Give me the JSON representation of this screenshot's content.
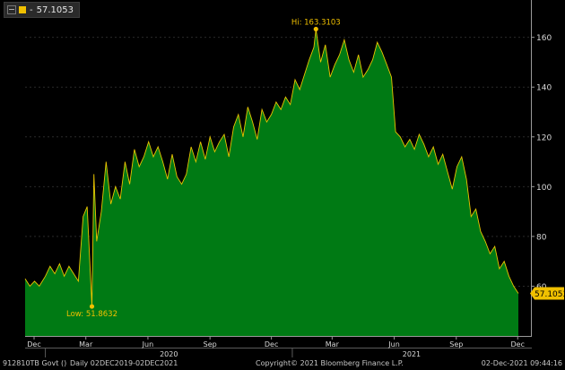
{
  "legend": {
    "marker_color": "#f0c000",
    "dash": "-",
    "value": "57.1053"
  },
  "footer": {
    "security": "912810TB Govt ()",
    "period": "Daily 02DEC2019-02DEC2021",
    "copyright": "Copyright© 2021 Bloomberg Finance L.P.",
    "timestamp": "02-Dec-2021 09:44:16"
  },
  "chart_data": {
    "type": "area",
    "title": "",
    "xlabel": "",
    "ylabel": "",
    "x_range": [
      "2019-12-02",
      "2021-12-02"
    ],
    "ylim": [
      40,
      175
    ],
    "y_ticks": [
      60,
      80,
      100,
      120,
      140,
      160
    ],
    "x_month_ticks": [
      "Dec",
      "Mar",
      "Jun",
      "Sep",
      "Dec",
      "Mar",
      "Jun",
      "Sep",
      "Dec"
    ],
    "x_year_labels": [
      "2020",
      "2021"
    ],
    "fill_color": "#007a14",
    "line_color": "#e8c400",
    "last_value": "57.1053",
    "annotations": [
      {
        "label": "Hi: 163.3103",
        "x": "2021-02-05",
        "y": 163.3103
      },
      {
        "label": "Low: 51.8632",
        "x": "2020-03-10",
        "y": 51.8632
      }
    ],
    "series": [
      {
        "points": [
          [
            "2019-12-02",
            63
          ],
          [
            "2019-12-09",
            60
          ],
          [
            "2019-12-16",
            62
          ],
          [
            "2019-12-23",
            60
          ],
          [
            "2020-01-01",
            64
          ],
          [
            "2020-01-08",
            68
          ],
          [
            "2020-01-15",
            65
          ],
          [
            "2020-01-22",
            69
          ],
          [
            "2020-01-29",
            64
          ],
          [
            "2020-02-05",
            68
          ],
          [
            "2020-02-12",
            65
          ],
          [
            "2020-02-19",
            62
          ],
          [
            "2020-02-26",
            88
          ],
          [
            "2020-03-03",
            92
          ],
          [
            "2020-03-10",
            51.8632
          ],
          [
            "2020-03-13",
            105
          ],
          [
            "2020-03-17",
            78
          ],
          [
            "2020-03-24",
            90
          ],
          [
            "2020-03-31",
            110
          ],
          [
            "2020-04-07",
            93
          ],
          [
            "2020-04-14",
            100
          ],
          [
            "2020-04-21",
            95
          ],
          [
            "2020-04-28",
            110
          ],
          [
            "2020-05-05",
            101
          ],
          [
            "2020-05-12",
            115
          ],
          [
            "2020-05-19",
            108
          ],
          [
            "2020-05-26",
            112
          ],
          [
            "2020-06-02",
            118
          ],
          [
            "2020-06-09",
            112
          ],
          [
            "2020-06-16",
            116
          ],
          [
            "2020-06-23",
            110
          ],
          [
            "2020-06-30",
            103
          ],
          [
            "2020-07-07",
            113
          ],
          [
            "2020-07-14",
            104
          ],
          [
            "2020-07-21",
            101
          ],
          [
            "2020-07-28",
            105
          ],
          [
            "2020-08-04",
            116
          ],
          [
            "2020-08-11",
            110
          ],
          [
            "2020-08-18",
            118
          ],
          [
            "2020-08-25",
            111
          ],
          [
            "2020-09-01",
            120
          ],
          [
            "2020-09-08",
            114
          ],
          [
            "2020-09-15",
            118
          ],
          [
            "2020-09-22",
            121
          ],
          [
            "2020-09-29",
            112
          ],
          [
            "2020-10-06",
            124
          ],
          [
            "2020-10-13",
            129
          ],
          [
            "2020-10-20",
            120
          ],
          [
            "2020-10-27",
            132
          ],
          [
            "2020-11-03",
            126
          ],
          [
            "2020-11-10",
            119
          ],
          [
            "2020-11-17",
            131
          ],
          [
            "2020-11-24",
            126
          ],
          [
            "2020-12-01",
            129
          ],
          [
            "2020-12-08",
            134
          ],
          [
            "2020-12-15",
            131
          ],
          [
            "2020-12-22",
            136
          ],
          [
            "2020-12-29",
            133
          ],
          [
            "2021-01-05",
            143
          ],
          [
            "2021-01-12",
            139
          ],
          [
            "2021-01-19",
            145
          ],
          [
            "2021-01-26",
            151
          ],
          [
            "2021-02-02",
            156
          ],
          [
            "2021-02-05",
            163.3103
          ],
          [
            "2021-02-12",
            150
          ],
          [
            "2021-02-19",
            157
          ],
          [
            "2021-02-26",
            144
          ],
          [
            "2021-03-05",
            149
          ],
          [
            "2021-03-12",
            153
          ],
          [
            "2021-03-19",
            159
          ],
          [
            "2021-03-26",
            151
          ],
          [
            "2021-04-02",
            146
          ],
          [
            "2021-04-09",
            153
          ],
          [
            "2021-04-16",
            144
          ],
          [
            "2021-04-23",
            147
          ],
          [
            "2021-04-30",
            151
          ],
          [
            "2021-05-07",
            158
          ],
          [
            "2021-05-14",
            154
          ],
          [
            "2021-05-21",
            149
          ],
          [
            "2021-05-28",
            144
          ],
          [
            "2021-06-03",
            122
          ],
          [
            "2021-06-10",
            120
          ],
          [
            "2021-06-17",
            116
          ],
          [
            "2021-06-24",
            119
          ],
          [
            "2021-07-01",
            115
          ],
          [
            "2021-07-08",
            121
          ],
          [
            "2021-07-15",
            117
          ],
          [
            "2021-07-22",
            112
          ],
          [
            "2021-07-29",
            116
          ],
          [
            "2021-08-05",
            109
          ],
          [
            "2021-08-12",
            113
          ],
          [
            "2021-08-19",
            106
          ],
          [
            "2021-08-26",
            99
          ],
          [
            "2021-09-02",
            108
          ],
          [
            "2021-09-09",
            112
          ],
          [
            "2021-09-16",
            103
          ],
          [
            "2021-09-23",
            88
          ],
          [
            "2021-09-30",
            91
          ],
          [
            "2021-10-07",
            82
          ],
          [
            "2021-10-14",
            78
          ],
          [
            "2021-10-21",
            73
          ],
          [
            "2021-10-28",
            76
          ],
          [
            "2021-11-04",
            67
          ],
          [
            "2021-11-11",
            70
          ],
          [
            "2021-11-18",
            64
          ],
          [
            "2021-11-25",
            60
          ],
          [
            "2021-12-02",
            57.1053
          ]
        ]
      }
    ]
  }
}
